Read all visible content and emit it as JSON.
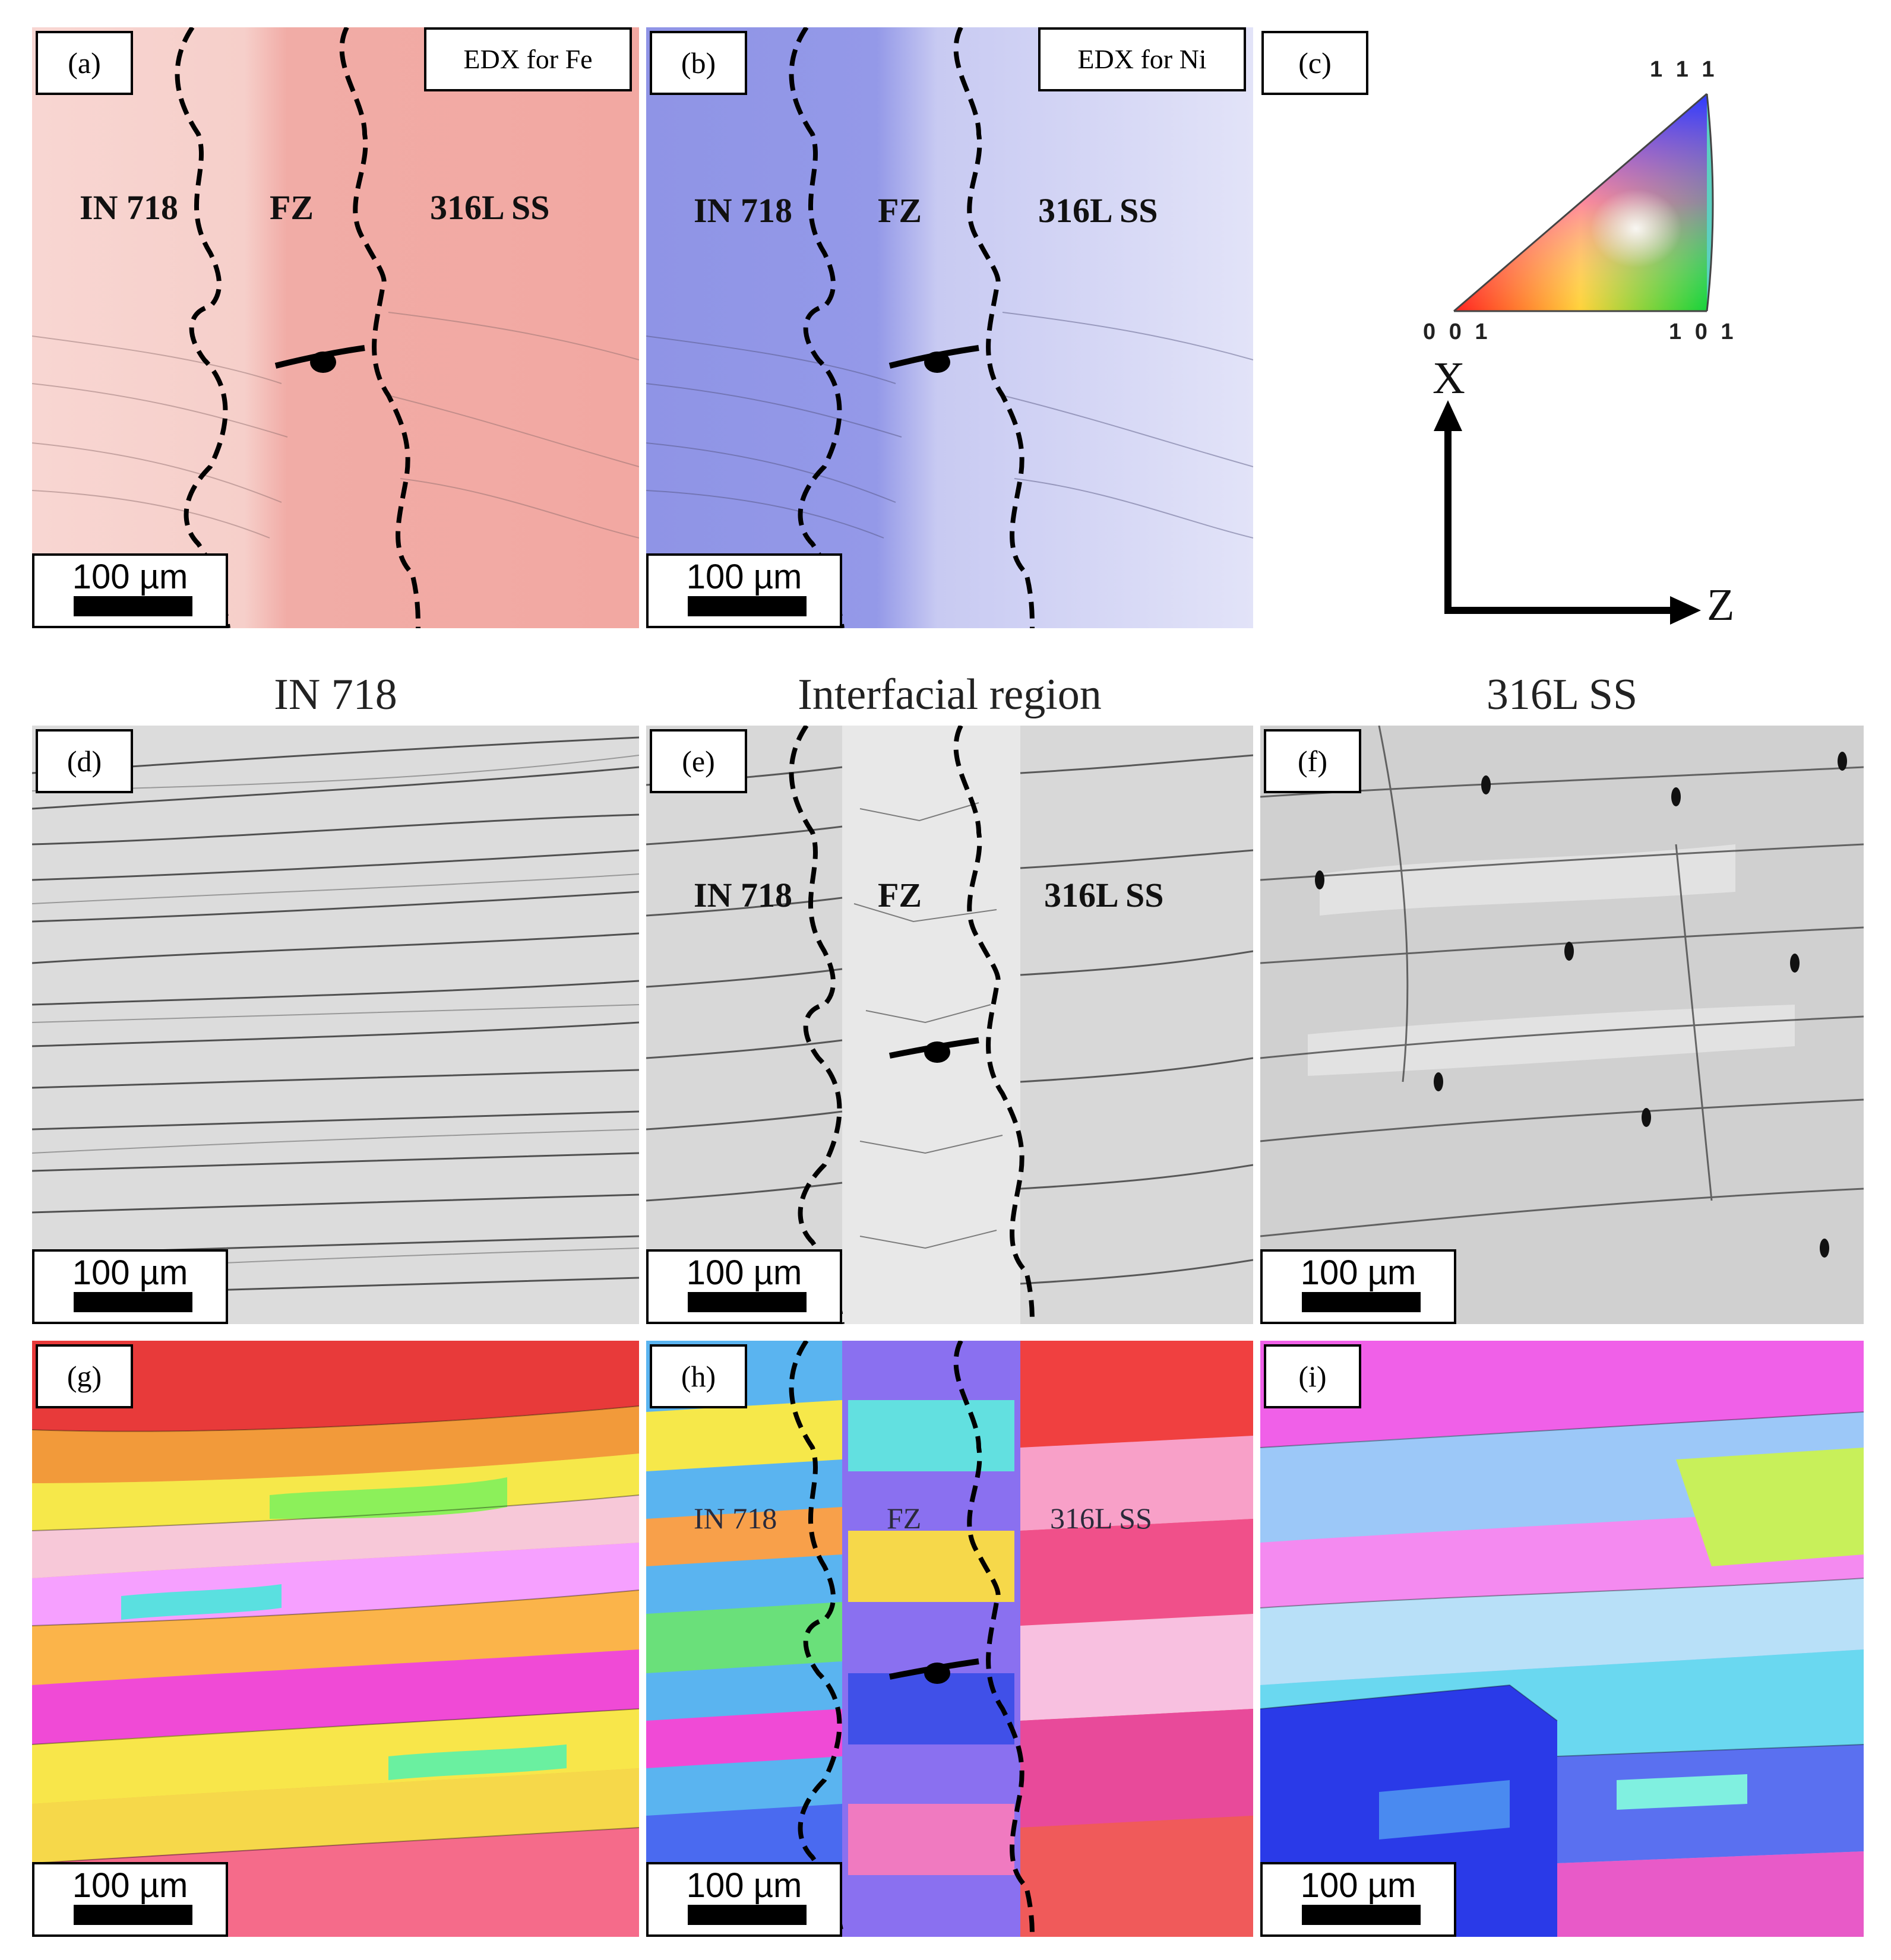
{
  "figure": {
    "panels": [
      {
        "id": "a",
        "label": "(a)",
        "type": "edx",
        "element_box": "EDX for Fe",
        "regions": [
          "IN 718",
          "FZ",
          "316L SS"
        ],
        "scale": "100 µm"
      },
      {
        "id": "b",
        "label": "(b)",
        "type": "edx",
        "element_box": "EDX for Ni",
        "regions": [
          "IN 718",
          "FZ",
          "316L SS"
        ],
        "scale": "100 µm"
      },
      {
        "id": "c",
        "label": "(c)",
        "type": "legend"
      },
      {
        "id": "d",
        "label": "(d)",
        "type": "band-contrast",
        "scale": "100 µm"
      },
      {
        "id": "e",
        "label": "(e)",
        "type": "band-contrast",
        "regions": [
          "IN 718",
          "FZ",
          "316L SS"
        ],
        "scale": "100 µm"
      },
      {
        "id": "f",
        "label": "(f)",
        "type": "band-contrast",
        "scale": "100 µm"
      },
      {
        "id": "g",
        "label": "(g)",
        "type": "ipf",
        "scale": "100 µm"
      },
      {
        "id": "h",
        "label": "(h)",
        "type": "ipf",
        "regions": [
          "IN 718",
          "FZ",
          "316L SS"
        ],
        "scale": "100 µm"
      },
      {
        "id": "i",
        "label": "(i)",
        "type": "ipf",
        "scale": "100 µm"
      }
    ],
    "column_titles": [
      "IN 718",
      "Interfacial region",
      "316L SS"
    ],
    "ipf_legend": {
      "top": "1 1 1",
      "bottom_left": "0 0 1",
      "bottom_right": "1 0 1"
    },
    "axes": {
      "vertical": "X",
      "horizontal": "Z"
    },
    "colors": {
      "fe_map": "#f2b4b0",
      "ni_map": "#aeb2ee",
      "outline": "#000000"
    }
  }
}
